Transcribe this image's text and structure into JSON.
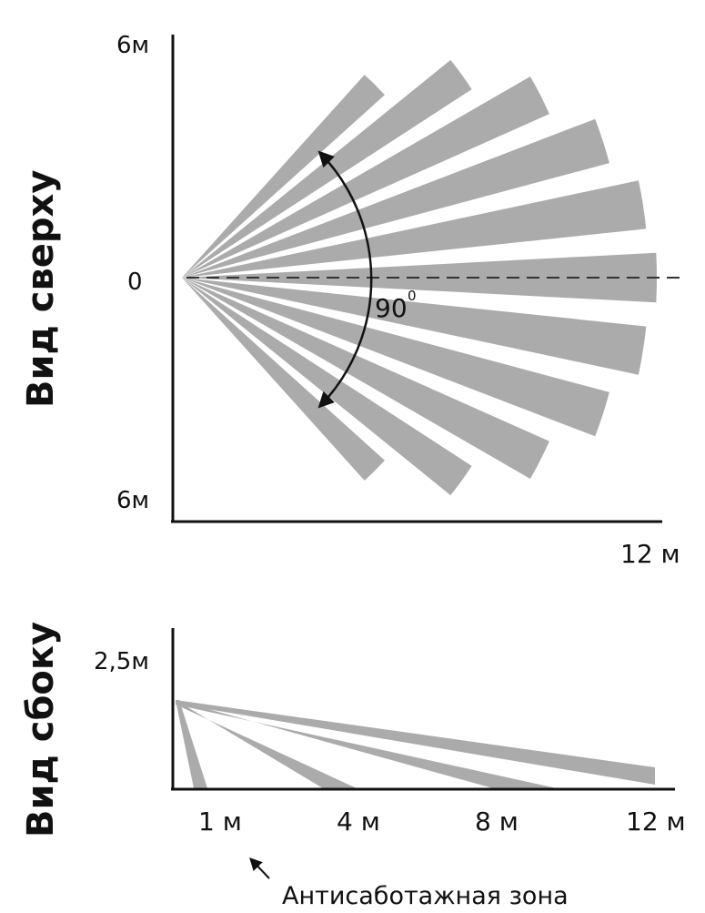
{
  "top_view": {
    "title": "Вид сверху",
    "y_top_label": "6м",
    "y_mid_label": "0",
    "y_bottom_label": "6м",
    "x_end_label": "12 м",
    "angle_label": "90",
    "angle_degree_mark": "0",
    "zones": {
      "count": 11,
      "spread_degrees": 90
    },
    "colors": {
      "zone": "#ababab",
      "axis": "#111111"
    }
  },
  "side_view": {
    "title": "Вид сбоку",
    "height_label": "2,5м",
    "x_labels": [
      "1 м",
      "4 м",
      "8 м",
      "12 м"
    ],
    "beams": {
      "count": 4
    },
    "colors": {
      "zone": "#ababab",
      "axis": "#111111"
    }
  },
  "annotation": {
    "text": "Антисаботажная зона"
  }
}
